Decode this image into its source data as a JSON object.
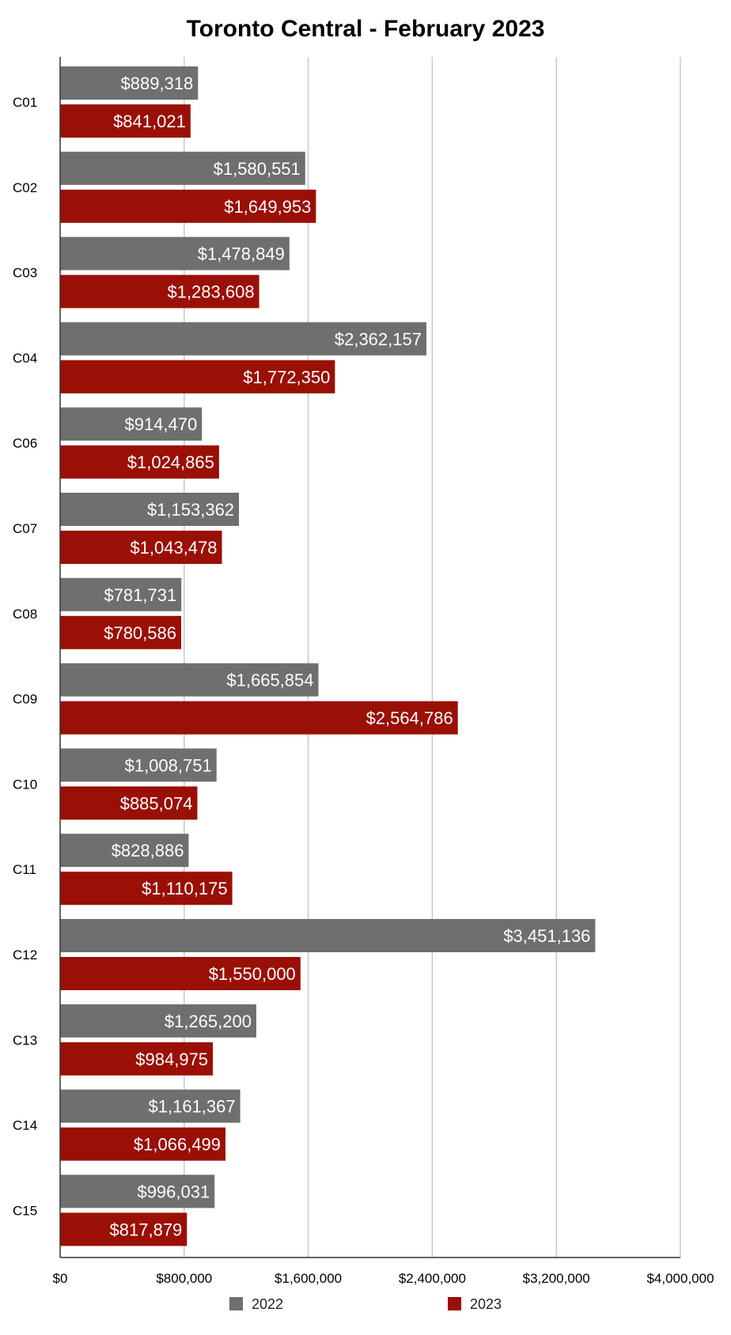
{
  "chart_data": {
    "type": "bar",
    "orientation": "horizontal",
    "title": "Toronto Central - February 2023",
    "xlabel": "",
    "ylabel": "",
    "xlim": [
      0,
      4000000
    ],
    "x_ticks": [
      0,
      800000,
      1600000,
      2400000,
      3200000,
      4000000
    ],
    "x_tick_labels": [
      "$0",
      "$800,000",
      "$1,600,000",
      "$2,400,000",
      "$3,200,000",
      "$4,000,000"
    ],
    "grid": true,
    "legend_position": "bottom",
    "categories": [
      "C01",
      "C02",
      "C03",
      "C04",
      "C06",
      "C07",
      "C08",
      "C09",
      "C10",
      "C11",
      "C12",
      "C13",
      "C14",
      "C15"
    ],
    "series": [
      {
        "name": "2022",
        "color": "#6d706d",
        "values": [
          889318,
          1580551,
          1478849,
          2362157,
          914470,
          1153362,
          781731,
          1665854,
          1008751,
          828886,
          3451136,
          1265200,
          1161367,
          996031
        ],
        "labels": [
          "$889,318",
          "$1,580,551",
          "$1,478,849",
          "$2,362,157",
          "$914,470",
          "$1,153,362",
          "$781,731",
          "$1,665,854",
          "$1,008,751",
          "$828,886",
          "$3,451,136",
          "$1,265,200",
          "$1,161,367",
          "$996,031"
        ]
      },
      {
        "name": "2023",
        "color": "#9a0f06",
        "values": [
          841021,
          1649953,
          1283608,
          1772350,
          1024865,
          1043478,
          780586,
          2564786,
          885074,
          1110175,
          1550000,
          984975,
          1066499,
          817879
        ],
        "labels": [
          "$841,021",
          "$1,649,953",
          "$1,283,608",
          "$1,772,350",
          "$1,024,865",
          "$1,043,478",
          "$780,586",
          "$2,564,786",
          "$885,074",
          "$1,110,175",
          "$1,550,000",
          "$984,975",
          "$1,066,499",
          "$817,879"
        ]
      }
    ]
  }
}
